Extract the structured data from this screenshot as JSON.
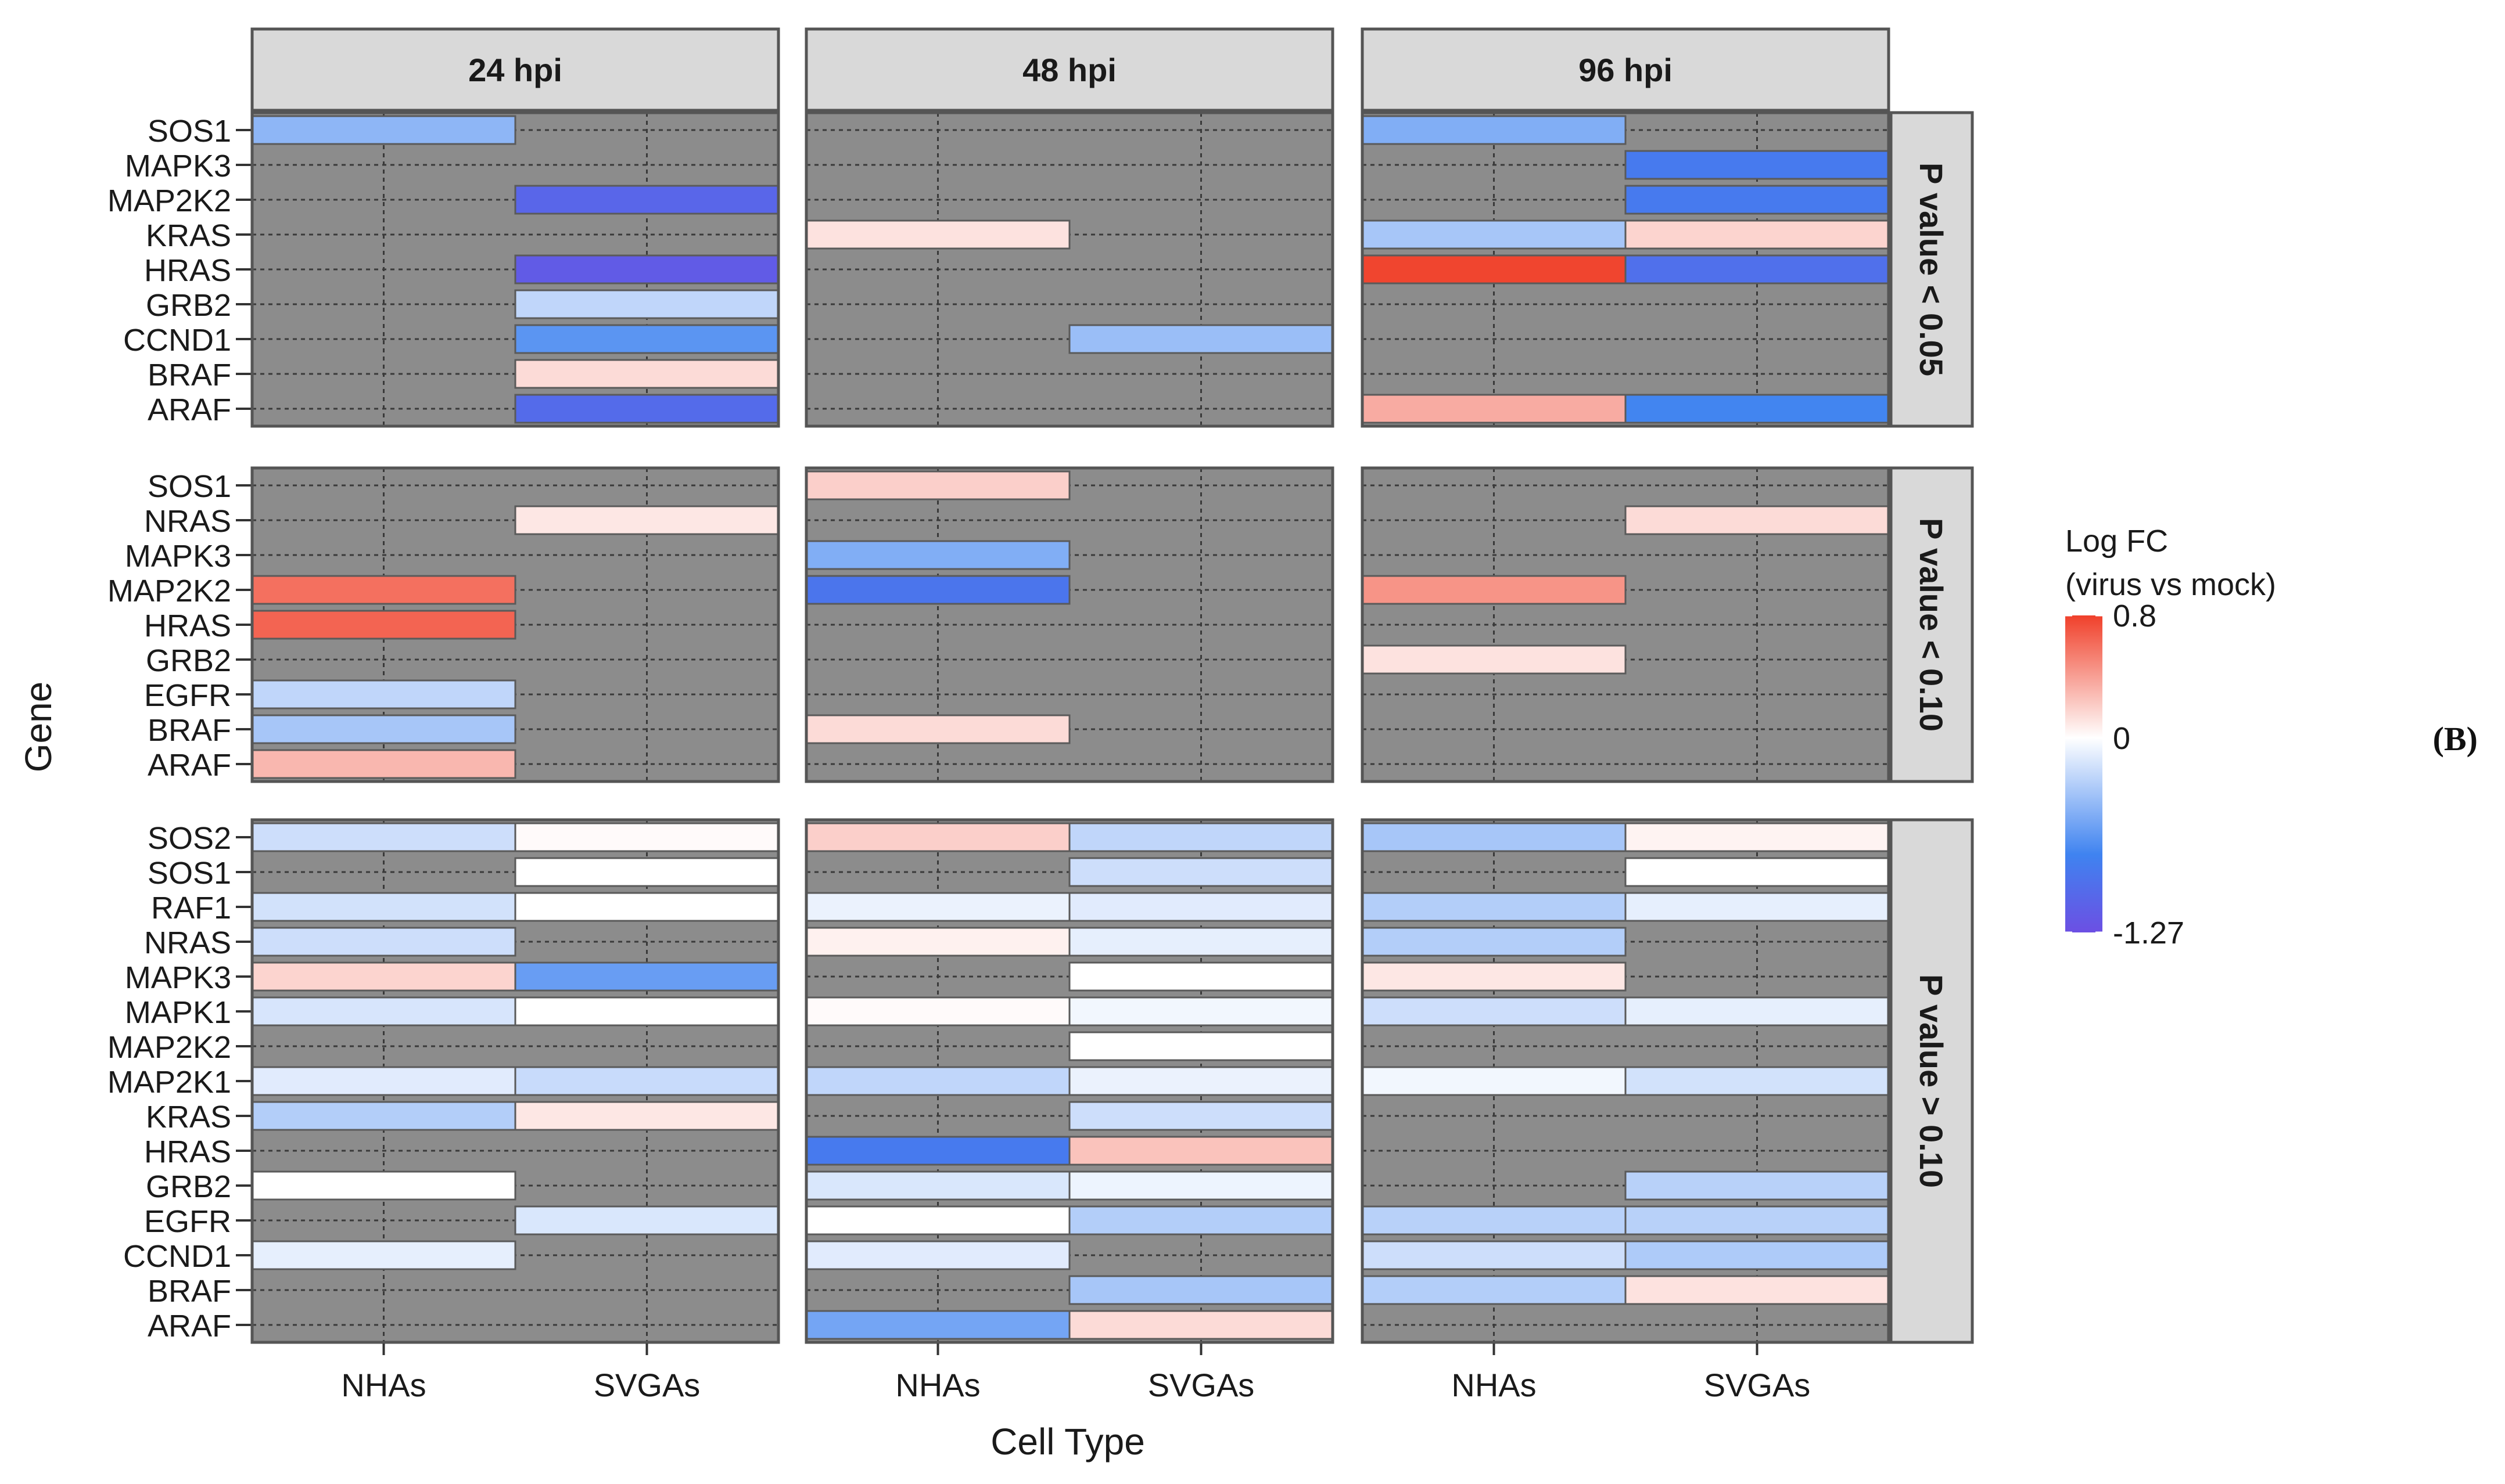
{
  "chart_data": {
    "type": "heatmap",
    "panel_label": "(B)",
    "xlabel": "Cell Type",
    "ylabel": "Gene",
    "columns": [
      "24 hpi",
      "48 hpi",
      "96 hpi"
    ],
    "cell_types": [
      "NHAs",
      "SVGAs"
    ],
    "legend": {
      "title_line1": "Log FC",
      "title_line2": "(virus vs mock)",
      "ticks": [
        {
          "value": 0.8,
          "label": "0.8"
        },
        {
          "value": 0,
          "label": "0"
        },
        {
          "value": -1.27,
          "label": "-1.27"
        }
      ],
      "min": -1.27,
      "max": 0.8,
      "colors": {
        "low": "#6c4fe3",
        "mid": "#ffffff",
        "high": "#f0402a"
      }
    },
    "na_color": "#8c8c8c",
    "rows": [
      {
        "label": "P value < 0.05",
        "genes": [
          "SOS1",
          "MAPK3",
          "MAP2K2",
          "KRAS",
          "HRAS",
          "GRB2",
          "CCND1",
          "BRAF",
          "ARAF"
        ],
        "values": {
          "24 hpi": {
            "NHAs": [
              -0.45,
              null,
              null,
              null,
              null,
              null,
              null,
              null,
              null
            ],
            "SVGAs": [
              null,
              null,
              -1.05,
              null,
              -1.15,
              -0.25,
              -0.65,
              0.15,
              -1.0
            ]
          },
          "48 hpi": {
            "NHAs": [
              null,
              null,
              null,
              0.12,
              null,
              null,
              null,
              null,
              null
            ],
            "SVGAs": [
              null,
              null,
              null,
              null,
              null,
              null,
              -0.4,
              null,
              null
            ]
          },
          "96 hpi": {
            "NHAs": [
              -0.5,
              null,
              null,
              -0.35,
              0.78,
              null,
              null,
              null,
              0.35
            ],
            "SVGAs": [
              null,
              -0.85,
              -0.85,
              0.18,
              -0.95,
              null,
              null,
              null,
              -0.75
            ]
          }
        }
      },
      {
        "label": "P value < 0.10",
        "genes": [
          "SOS1",
          "NRAS",
          "MAPK3",
          "MAP2K2",
          "HRAS",
          "GRB2",
          "EGFR",
          "BRAF",
          "ARAF"
        ],
        "values": {
          "24 hpi": {
            "NHAs": [
              null,
              null,
              null,
              0.6,
              0.65,
              null,
              -0.25,
              -0.35,
              0.3
            ],
            "SVGAs": [
              null,
              0.1,
              null,
              null,
              null,
              null,
              null,
              null,
              null
            ]
          },
          "48 hpi": {
            "NHAs": [
              0.2,
              null,
              -0.5,
              -0.9,
              null,
              null,
              null,
              0.15,
              null
            ],
            "SVGAs": [
              null,
              null,
              null,
              null,
              null,
              null,
              null,
              null,
              null
            ]
          },
          "96 hpi": {
            "NHAs": [
              null,
              null,
              null,
              0.45,
              null,
              0.12,
              null,
              null,
              null
            ],
            "SVGAs": [
              null,
              0.15,
              null,
              null,
              null,
              null,
              null,
              null,
              null
            ]
          }
        }
      },
      {
        "label": "P value > 0.10",
        "genes": [
          "SOS2",
          "SOS1",
          "RAF1",
          "NRAS",
          "MAPK3",
          "MAPK1",
          "MAP2K2",
          "MAP2K1",
          "KRAS",
          "HRAS",
          "GRB2",
          "EGFR",
          "CCND1",
          "BRAF",
          "ARAF"
        ],
        "values": {
          "24 hpi": {
            "NHAs": [
              -0.2,
              null,
              -0.18,
              -0.2,
              0.18,
              -0.16,
              null,
              -0.12,
              -0.3,
              null,
              0.0,
              null,
              -0.1,
              null,
              null
            ],
            "SVGAs": [
              0.02,
              0.0,
              0.0,
              null,
              -0.6,
              0.0,
              null,
              -0.22,
              0.1,
              null,
              null,
              -0.15,
              null,
              null,
              null
            ]
          },
          "48 hpi": {
            "NHAs": [
              0.2,
              null,
              -0.08,
              0.06,
              null,
              0.02,
              null,
              -0.25,
              null,
              -0.85,
              -0.15,
              0.0,
              -0.12,
              null,
              -0.55
            ],
            "SVGAs": [
              -0.25,
              -0.2,
              -0.12,
              -0.1,
              0.0,
              -0.05,
              0.0,
              -0.08,
              -0.2,
              0.25,
              -0.07,
              -0.3,
              null,
              -0.35,
              0.15
            ]
          },
          "96 hpi": {
            "NHAs": [
              -0.35,
              null,
              -0.3,
              -0.3,
              0.1,
              -0.2,
              null,
              -0.05,
              null,
              null,
              null,
              -0.28,
              -0.2,
              -0.3,
              null
            ],
            "SVGAs": [
              0.05,
              0.0,
              -0.1,
              null,
              null,
              -0.1,
              null,
              -0.18,
              null,
              null,
              -0.28,
              -0.28,
              -0.32,
              0.12,
              null
            ]
          }
        }
      }
    ]
  }
}
